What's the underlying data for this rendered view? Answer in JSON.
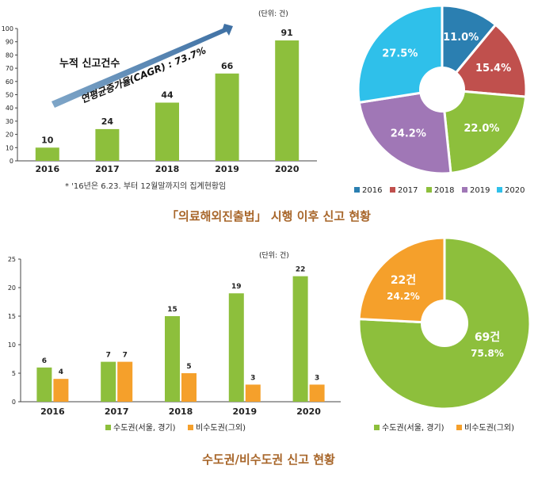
{
  "chart_data": [
    {
      "type": "bar",
      "unit_label": "(단위: 건)",
      "categories": [
        "2016",
        "2017",
        "2018",
        "2019",
        "2020"
      ],
      "values": [
        10,
        24,
        44,
        66,
        91
      ],
      "ylim": [
        0,
        100
      ],
      "yticks": [
        0,
        10,
        20,
        30,
        40,
        50,
        60,
        70,
        80,
        90,
        100
      ],
      "annotation": "누적 신고건수",
      "arrow_label": "연평균증가율(CAGR) : 73.7%",
      "footnote": "* '16년은 6.23. 부터 12월말까지의 집계현황임",
      "color": "#8dbf3c"
    },
    {
      "type": "pie",
      "labels": [
        "2016",
        "2017",
        "2018",
        "2019",
        "2020"
      ],
      "values": [
        11.0,
        15.4,
        22.0,
        24.2,
        27.5
      ],
      "value_labels": [
        "11.0%",
        "15.4%",
        "22.0%",
        "24.2%",
        "27.5%"
      ],
      "colors": [
        "#2b7fb1",
        "#c0504d",
        "#8dbf3c",
        "#a077b6",
        "#2fc0ea"
      ]
    },
    {
      "type": "bar",
      "unit_label": "(단위: 건)",
      "categories": [
        "2016",
        "2017",
        "2018",
        "2019",
        "2020"
      ],
      "series": [
        {
          "name": "수도권(서울, 경기)",
          "values": [
            6,
            7,
            15,
            19,
            22
          ],
          "color": "#8dbf3c"
        },
        {
          "name": "비수도권(그외)",
          "values": [
            4,
            7,
            5,
            3,
            3
          ],
          "color": "#f5a02b"
        }
      ],
      "ylim": [
        0,
        25
      ],
      "yticks": [
        0,
        5,
        10,
        15,
        20,
        25
      ]
    },
    {
      "type": "pie",
      "labels": [
        "수도권(서울, 경기)",
        "비수도권(그외)"
      ],
      "values": [
        75.8,
        24.2
      ],
      "count_labels": [
        "69건",
        "22건"
      ],
      "value_labels": [
        "75.8%",
        "24.2%"
      ],
      "colors": [
        "#8dbf3c",
        "#f5a02b"
      ]
    }
  ],
  "section_titles": {
    "top": "「의료해외진출법」 시행 이후 신고 현황",
    "bottom": "수도권/비수도권 신고 현황"
  }
}
